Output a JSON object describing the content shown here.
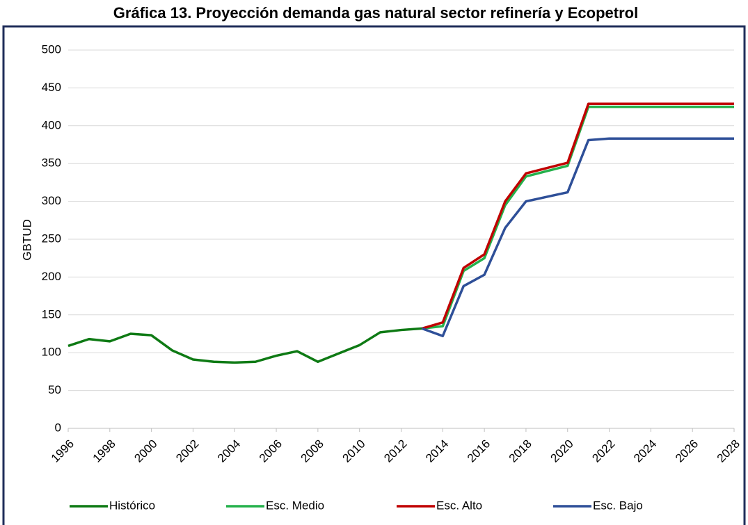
{
  "chart_data": {
    "type": "line",
    "title": "Gráfica 13. Proyección demanda gas natural sector refinería y Ecopetrol",
    "y_label": "GBTUD",
    "x": [
      1996,
      1997,
      1998,
      1999,
      2000,
      2001,
      2002,
      2003,
      2004,
      2005,
      2006,
      2007,
      2008,
      2009,
      2010,
      2011,
      2012,
      2013,
      2014,
      2015,
      2016,
      2017,
      2018,
      2019,
      2020,
      2021,
      2022,
      2023,
      2024,
      2025,
      2026,
      2027,
      2028
    ],
    "xlim": [
      1996,
      2028
    ],
    "xticks": [
      1996,
      1998,
      2000,
      2002,
      2004,
      2006,
      2008,
      2010,
      2012,
      2014,
      2016,
      2018,
      2020,
      2022,
      2024,
      2026,
      2028
    ],
    "ylim": [
      0,
      500
    ],
    "yticks": [
      0,
      50,
      100,
      150,
      200,
      250,
      300,
      350,
      400,
      450,
      500
    ],
    "grid": true,
    "legend": "bottom",
    "series": [
      {
        "name": "Histórico",
        "color": "#0e7a14",
        "values": [
          109,
          118,
          115,
          125,
          123,
          103,
          91,
          88,
          87,
          88,
          96,
          102,
          88,
          99,
          110,
          127,
          130,
          132,
          null,
          null,
          null,
          null,
          null,
          null,
          null,
          null,
          null,
          null,
          null,
          null,
          null,
          null,
          null
        ]
      },
      {
        "name": "Esc. Medio",
        "color": "#25b14c",
        "values": [
          null,
          null,
          null,
          null,
          null,
          null,
          null,
          null,
          null,
          null,
          null,
          null,
          null,
          null,
          null,
          null,
          null,
          132,
          135,
          208,
          225,
          295,
          333,
          340,
          347,
          425,
          425,
          425,
          425,
          425,
          425,
          425,
          425
        ]
      },
      {
        "name": "Esc. Alto",
        "color": "#c00000",
        "values": [
          null,
          null,
          null,
          null,
          null,
          null,
          null,
          null,
          null,
          null,
          null,
          null,
          null,
          null,
          null,
          null,
          null,
          132,
          140,
          212,
          230,
          300,
          337,
          344,
          351,
          429,
          429,
          429,
          429,
          429,
          429,
          429,
          429
        ]
      },
      {
        "name": "Esc. Bajo",
        "color": "#2e4f98",
        "values": [
          null,
          null,
          null,
          null,
          null,
          null,
          null,
          null,
          null,
          null,
          null,
          null,
          null,
          null,
          null,
          null,
          null,
          132,
          122,
          188,
          203,
          265,
          300,
          306,
          312,
          381,
          383,
          383,
          383,
          383,
          383,
          383,
          383
        ]
      }
    ]
  }
}
